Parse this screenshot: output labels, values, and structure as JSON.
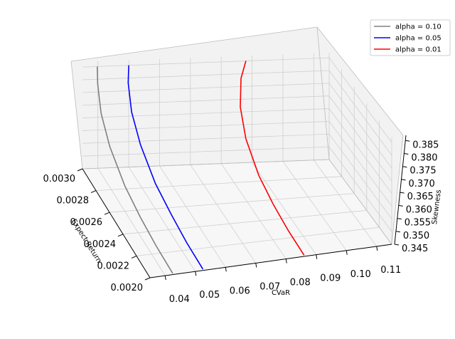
{
  "chart_data": {
    "type": "line",
    "projection": "3d",
    "xlabel": "CVaR",
    "ylabel": "Expect Return",
    "zlabel": "Skewness",
    "xlim": [
      0.035,
      0.115
    ],
    "ylim": [
      0.002,
      0.003
    ],
    "zlim": [
      0.345,
      0.387
    ],
    "x_ticks": [
      "0.04",
      "0.05",
      "0.06",
      "0.07",
      "0.08",
      "0.09",
      "0.10",
      "0.11"
    ],
    "y_ticks": [
      "0.0020",
      "0.0022",
      "0.0024",
      "0.0026",
      "0.0028",
      "0.0030"
    ],
    "z_ticks": [
      "0.345",
      "0.350",
      "0.355",
      "0.360",
      "0.365",
      "0.370",
      "0.375",
      "0.380",
      "0.385"
    ],
    "grid": true,
    "legend_position": "top-right",
    "series": [
      {
        "name": "alpha = 0.10",
        "color": "#808080",
        "points": [
          {
            "x": 0.0425,
            "y": 0.002,
            "z": 0.3455
          },
          {
            "x": 0.0415,
            "y": 0.0022,
            "z": 0.348
          },
          {
            "x": 0.0407,
            "y": 0.0024,
            "z": 0.351
          },
          {
            "x": 0.04,
            "y": 0.0026,
            "z": 0.355
          },
          {
            "x": 0.0395,
            "y": 0.0028,
            "z": 0.362
          },
          {
            "x": 0.0393,
            "y": 0.00292,
            "z": 0.37
          },
          {
            "x": 0.0395,
            "y": 0.00298,
            "z": 0.379
          },
          {
            "x": 0.0398,
            "y": 0.003,
            "z": 0.385
          }
        ]
      },
      {
        "name": "alpha = 0.05",
        "color": "#0000ff",
        "points": [
          {
            "x": 0.0525,
            "y": 0.002,
            "z": 0.3455
          },
          {
            "x": 0.0515,
            "y": 0.0022,
            "z": 0.348
          },
          {
            "x": 0.0508,
            "y": 0.0024,
            "z": 0.351
          },
          {
            "x": 0.05,
            "y": 0.0026,
            "z": 0.355
          },
          {
            "x": 0.0495,
            "y": 0.0028,
            "z": 0.362
          },
          {
            "x": 0.0492,
            "y": 0.00292,
            "z": 0.37
          },
          {
            "x": 0.0494,
            "y": 0.00298,
            "z": 0.379
          },
          {
            "x": 0.05,
            "y": 0.003,
            "z": 0.385
          }
        ]
      },
      {
        "name": "alpha = 0.01",
        "color": "#ff0000",
        "points": [
          {
            "x": 0.086,
            "y": 0.002,
            "z": 0.3455
          },
          {
            "x": 0.085,
            "y": 0.0022,
            "z": 0.348
          },
          {
            "x": 0.0843,
            "y": 0.0024,
            "z": 0.351
          },
          {
            "x": 0.0838,
            "y": 0.0026,
            "z": 0.355
          },
          {
            "x": 0.0838,
            "y": 0.0028,
            "z": 0.362
          },
          {
            "x": 0.0845,
            "y": 0.00292,
            "z": 0.37
          },
          {
            "x": 0.086,
            "y": 0.00298,
            "z": 0.379
          },
          {
            "x": 0.088,
            "y": 0.003,
            "z": 0.385
          }
        ]
      }
    ]
  }
}
